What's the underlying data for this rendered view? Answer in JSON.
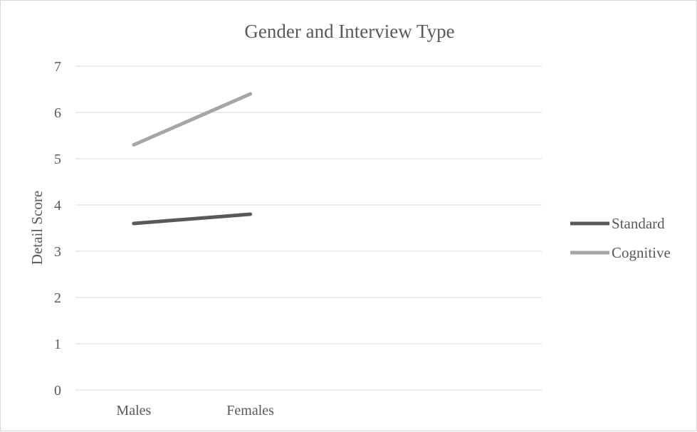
{
  "chart_data": {
    "type": "line",
    "title": "Gender and Interview Type",
    "xlabel": "",
    "ylabel": "Detail Score",
    "categories": [
      "Males",
      "Females"
    ],
    "ylim": [
      0,
      7
    ],
    "yticks": [
      "0",
      "1",
      "2",
      "3",
      "4",
      "5",
      "6",
      "7"
    ],
    "grid": true,
    "legend_position": "right",
    "series": [
      {
        "name": "Standard",
        "values": [
          3.6,
          3.8
        ],
        "color": "#595959"
      },
      {
        "name": "Cognitive",
        "values": [
          5.3,
          6.4
        ],
        "color": "#a6a6a6"
      }
    ]
  }
}
